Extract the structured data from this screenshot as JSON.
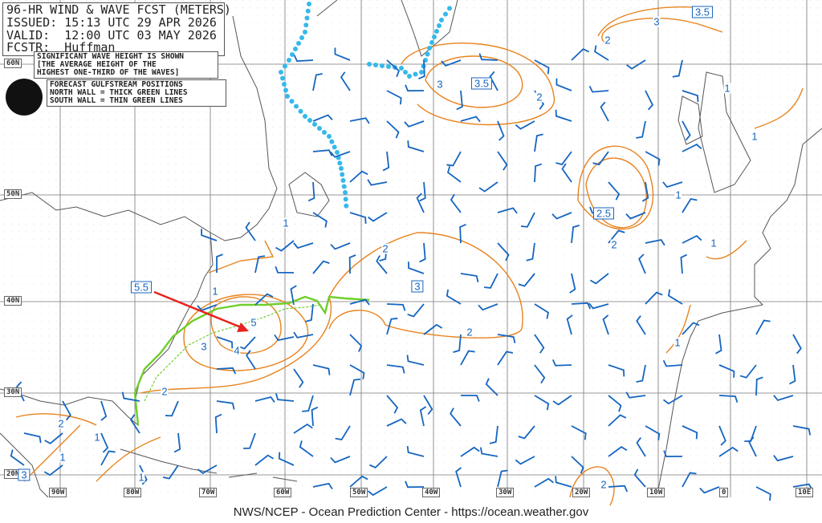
{
  "header": {
    "title": "96-HR WIND & WAVE FCST (METERS)",
    "issued": "ISSUED: 15:13 UTC 29 APR 2026",
    "valid": "VALID:  12:00 UTC 03 MAY 2026",
    "forecaster": "FCSTR:  Huffman"
  },
  "legend_wave": "SIGNIFICANT WAVE HEIGHT IS SHOWN\n[THE AVERAGE HEIGHT OF THE\nHIGHEST ONE-THIRD OF THE WAVES]",
  "legend_gulfstream": "FORECAST GULFSTREAM POSITIONS\nNORTH WALL = THICK GREEN LINES\nSOUTH WALL = THIN GREEN LINES",
  "logo_text": "NOAA",
  "latitudes": [
    "60N",
    "50N",
    "40N",
    "30N",
    "20N"
  ],
  "longitudes": [
    "90W",
    "80W",
    "70W",
    "60W",
    "50W",
    "40W",
    "30W",
    "20W",
    "10W",
    "0",
    "10E"
  ],
  "wave_maxima": [
    "3.5",
    "3.5",
    "2.5",
    "3",
    "5.5",
    "3"
  ],
  "contour_labels": [
    "3",
    "2",
    "3",
    "2",
    "1",
    "1",
    "1",
    "2",
    "1",
    "1",
    "2",
    "1",
    "5",
    "3",
    "4",
    "2",
    "1",
    "2",
    "2",
    "1",
    "1",
    "1",
    "2"
  ],
  "footer": "NWS/NCEP - Ocean Prediction Center - https://ocean.weather.gov",
  "colors": {
    "wave_contour": "#e8831e",
    "wind_barb": "#1565c0",
    "gulfstream": "#6fcf2a",
    "ice_edge": "#35b9ea",
    "arrow": "#e8231e"
  }
}
